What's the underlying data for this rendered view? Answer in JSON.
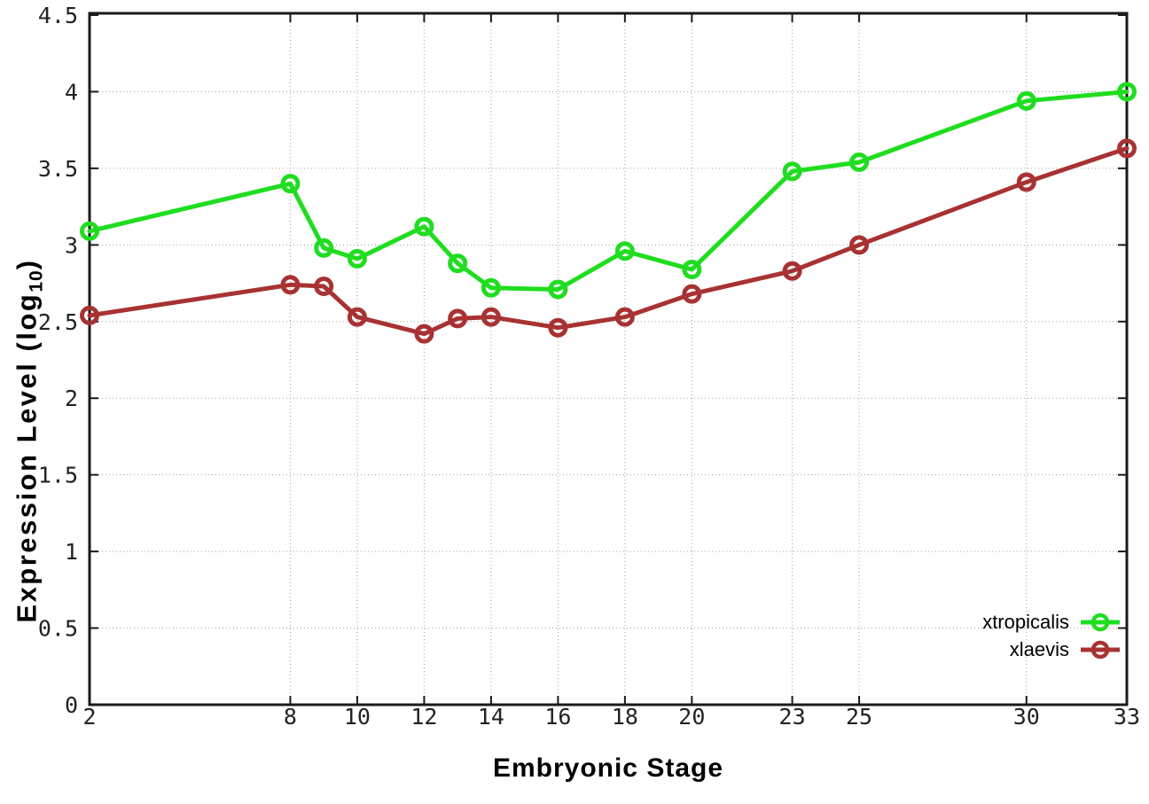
{
  "chart_data": {
    "type": "line",
    "title": "",
    "xlabel": "Embryonic Stage",
    "ylabel": "Expression Level (log10)",
    "ylabel_parts": {
      "pre": "Expression Level (log",
      "sub": "10",
      "post": ")"
    },
    "xlim": [
      2,
      33
    ],
    "ylim": [
      0,
      4.5
    ],
    "xticks": [
      2,
      8,
      10,
      12,
      14,
      16,
      18,
      20,
      23,
      25,
      30,
      33
    ],
    "yticks": [
      0,
      0.5,
      1,
      1.5,
      2,
      2.5,
      3,
      3.5,
      4,
      4.5
    ],
    "grid": true,
    "legend_position": "bottom-right",
    "x": [
      2,
      8,
      9,
      10,
      12,
      13,
      14,
      16,
      18,
      20,
      23,
      25,
      30,
      33
    ],
    "series": [
      {
        "name": "xtropicalis",
        "color": "#1fdd1f",
        "values": [
          3.09,
          3.4,
          2.98,
          2.91,
          3.12,
          2.88,
          2.72,
          2.71,
          2.96,
          2.84,
          3.48,
          3.54,
          3.94,
          4.0
        ]
      },
      {
        "name": "xlaevis",
        "color": "#a83232",
        "values": [
          2.54,
          2.74,
          2.73,
          2.53,
          2.42,
          2.52,
          2.53,
          2.46,
          2.53,
          2.68,
          2.83,
          3.0,
          3.41,
          3.63
        ]
      }
    ],
    "axis_color": "#1a1a1a",
    "grid_color": "#a0a0a0"
  }
}
